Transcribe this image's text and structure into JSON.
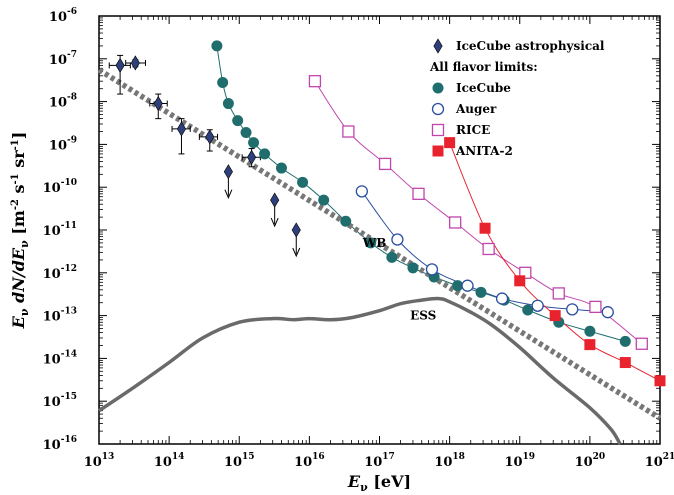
{
  "chart_data": {
    "type": "scatter",
    "xscale": "log",
    "yscale": "log",
    "xlim": [
      10000000000000.0,
      1e+21
    ],
    "ylim": [
      1e-16,
      1e-06
    ],
    "x_ticks": [
      13,
      14,
      15,
      16,
      17,
      18,
      19,
      20,
      21
    ],
    "y_ticks": [
      -16,
      -15,
      -14,
      -13,
      -12,
      -11,
      -10,
      -9,
      -8,
      -7,
      -6
    ],
    "xlabel": {
      "main": "E",
      "sub": "ν",
      "unit": " [eV]"
    },
    "ylabel": {
      "main": "E",
      "sub": "ν",
      "mid": " dN/dE",
      "sub2": "ν"
    },
    "ylabel_unit": {
      "a": "[m",
      "a_sup": "-2",
      "b": " s",
      "b_sup": "-1",
      "c": " sr",
      "c_sup": "-1",
      "d": "]"
    },
    "legend": {
      "placement": "top-right",
      "entries": [
        {
          "label": "IceCube astrophysical",
          "marker": "diamond",
          "color": "#2e3f7a"
        },
        {
          "label": "All flavor limits:",
          "marker": "none",
          "color": "#000000"
        },
        {
          "label": "IceCube",
          "marker": "filled-circle",
          "color": "#1f6d6d"
        },
        {
          "label": "Auger",
          "marker": "open-circle",
          "color": "#2b4fa0"
        },
        {
          "label": "RICE",
          "marker": "open-square",
          "color": "#c046ad"
        },
        {
          "label": "ANITA-2",
          "marker": "filled-square",
          "color": "#e8232e"
        }
      ]
    },
    "series": [
      {
        "name": "IceCube astrophysical",
        "type": "points-with-errors",
        "color": "#2e3f7a",
        "points": [
          {
            "x": 20000000000000.0,
            "y": 7e-08,
            "xerr": [
              14000000000000.0,
              28000000000000.0
            ],
            "yerr": [
              1.5e-08,
              1.2e-07
            ]
          },
          {
            "x": 33000000000000.0,
            "y": 8e-08,
            "xerr": [
              24000000000000.0,
              46000000000000.0
            ],
            "yerr": [
              6.5e-08,
              9.5e-08
            ]
          },
          {
            "x": 70000000000000.0,
            "y": 9e-09,
            "xerr": [
              53000000000000.0,
              94000000000000.0
            ],
            "yerr": [
              4e-09,
              1.5e-08
            ]
          },
          {
            "x": 150000000000000.0,
            "y": 2.3e-09,
            "xerr": [
              110000000000000.0,
              200000000000000.0
            ],
            "yerr": [
              6e-10,
              4e-09
            ]
          },
          {
            "x": 380000000000000.0,
            "y": 1.5e-09,
            "xerr": [
              270000000000000.0,
              490000000000000.0
            ],
            "yerr": [
              7e-10,
              2.2e-09
            ]
          },
          {
            "x": 1500000000000000.0,
            "y": 5e-10,
            "xerr": [
              1100000000000000.0,
              2000000000000000.0
            ],
            "yerr": [
              3e-10,
              8e-10
            ]
          }
        ]
      },
      {
        "name": "IceCube astrophysical (upper limits)",
        "type": "upper-limits",
        "color": "#2e3f7a",
        "points": [
          {
            "x": 700000000000000.0,
            "y": 2.3e-10
          },
          {
            "x": 3200000000000000.0,
            "y": 5e-11
          },
          {
            "x": 6500000000000000.0,
            "y": 1e-11
          }
        ]
      },
      {
        "name": "IceCube",
        "type": "line-markers",
        "marker": "filled-circle",
        "color": "#1f6d6d",
        "x": [
          480000000000000.0,
          580000000000000.0,
          700000000000000.0,
          950000000000000.0,
          1250000000000000.0,
          1600000000000000.0,
          2300000000000000.0,
          4000000000000000.0,
          8000000000000000.0,
          1.6e+16,
          3.3e+16,
          7.5e+16,
          1.5e+17,
          3e+17,
          6e+17,
          1.3e+18,
          2.8e+18,
          6e+18,
          1.3e+19,
          3.6e+19,
          1e+20,
          3.2e+20
        ],
        "y": [
          2e-07,
          2.8e-08,
          9e-09,
          3.6e-09,
          1.9e-09,
          1.1e-09,
          6e-10,
          2.8e-10,
          1.3e-10,
          5e-11,
          1.6e-11,
          5e-12,
          2.3e-12,
          1.3e-12,
          8e-13,
          5e-13,
          3.5e-13,
          2.3e-13,
          1.35e-13,
          7e-14,
          4.3e-14,
          2.5e-14
        ]
      },
      {
        "name": "Auger",
        "type": "line-markers",
        "marker": "open-circle",
        "color": "#2b4fa0",
        "x": [
          5.6e+16,
          1.8e+17,
          5.6e+17,
          1.8e+18,
          5.6e+18,
          1.8e+19,
          5.6e+19,
          1.8e+20
        ],
        "y": [
          8e-11,
          6e-12,
          1.2e-12,
          5e-13,
          2.5e-13,
          1.7e-13,
          1.4e-13,
          1.2e-13
        ]
      },
      {
        "name": "RICE",
        "type": "line-markers",
        "marker": "open-square",
        "color": "#c046ad",
        "x": [
          1.2e+16,
          3.6e+16,
          1.2e+17,
          3.6e+17,
          1.2e+18,
          3.6e+18,
          1.2e+19,
          3.6e+19,
          1.2e+20,
          5.5e+20
        ],
        "y": [
          3e-08,
          2e-09,
          3.5e-10,
          7e-11,
          1.5e-11,
          3.6e-12,
          1e-12,
          3.3e-13,
          1.6e-13,
          2.2e-14
        ]
      },
      {
        "name": "ANITA-2",
        "type": "line-markers",
        "marker": "filled-square",
        "color": "#e8232e",
        "x": [
          1e+18,
          3.2e+18,
          1e+19,
          3.2e+19,
          1e+20,
          3.2e+20,
          1e+21
        ],
        "y": [
          1.1e-09,
          1.1e-11,
          6.5e-13,
          1e-13,
          2.1e-14,
          8e-15,
          3e-15
        ]
      },
      {
        "name": "WB",
        "type": "dashed-line",
        "color": "#777777",
        "x": [
          10000000000000.0,
          1e+21
        ],
        "y": [
          5.5e-08,
          4e-16
        ]
      },
      {
        "name": "ESS",
        "type": "line",
        "color": "#6a6a6a",
        "x": [
          10000000000000.0,
          30000000000000.0,
          100000000000000.0,
          300000000000000.0,
          1000000000000000.0,
          3000000000000000.0,
          6000000000000000.0,
          1e+16,
          2e+16,
          4e+16,
          1e+17,
          2e+17,
          4e+17,
          7e+17,
          1e+18,
          2e+18,
          4e+18,
          1e+19,
          3e+19,
          1e+20,
          2e+20,
          2.7e+20
        ],
        "y": [
          6e-16,
          2e-15,
          8e-15,
          3e-14,
          7e-14,
          8.5e-14,
          8e-14,
          8.5e-14,
          8e-14,
          9e-14,
          1.3e-13,
          1.9e-13,
          2.3e-13,
          2.5e-13,
          2.1e-13,
          1.2e-13,
          6e-14,
          1.8e-14,
          3.5e-15,
          7e-16,
          2.2e-16,
          1e-16
        ]
      }
    ],
    "annotations": [
      {
        "text": "WB",
        "x": 8.5e+16,
        "y": 4e-12
      },
      {
        "text": "ESS",
        "x": 4.2e+17,
        "y": 8e-14
      }
    ]
  }
}
